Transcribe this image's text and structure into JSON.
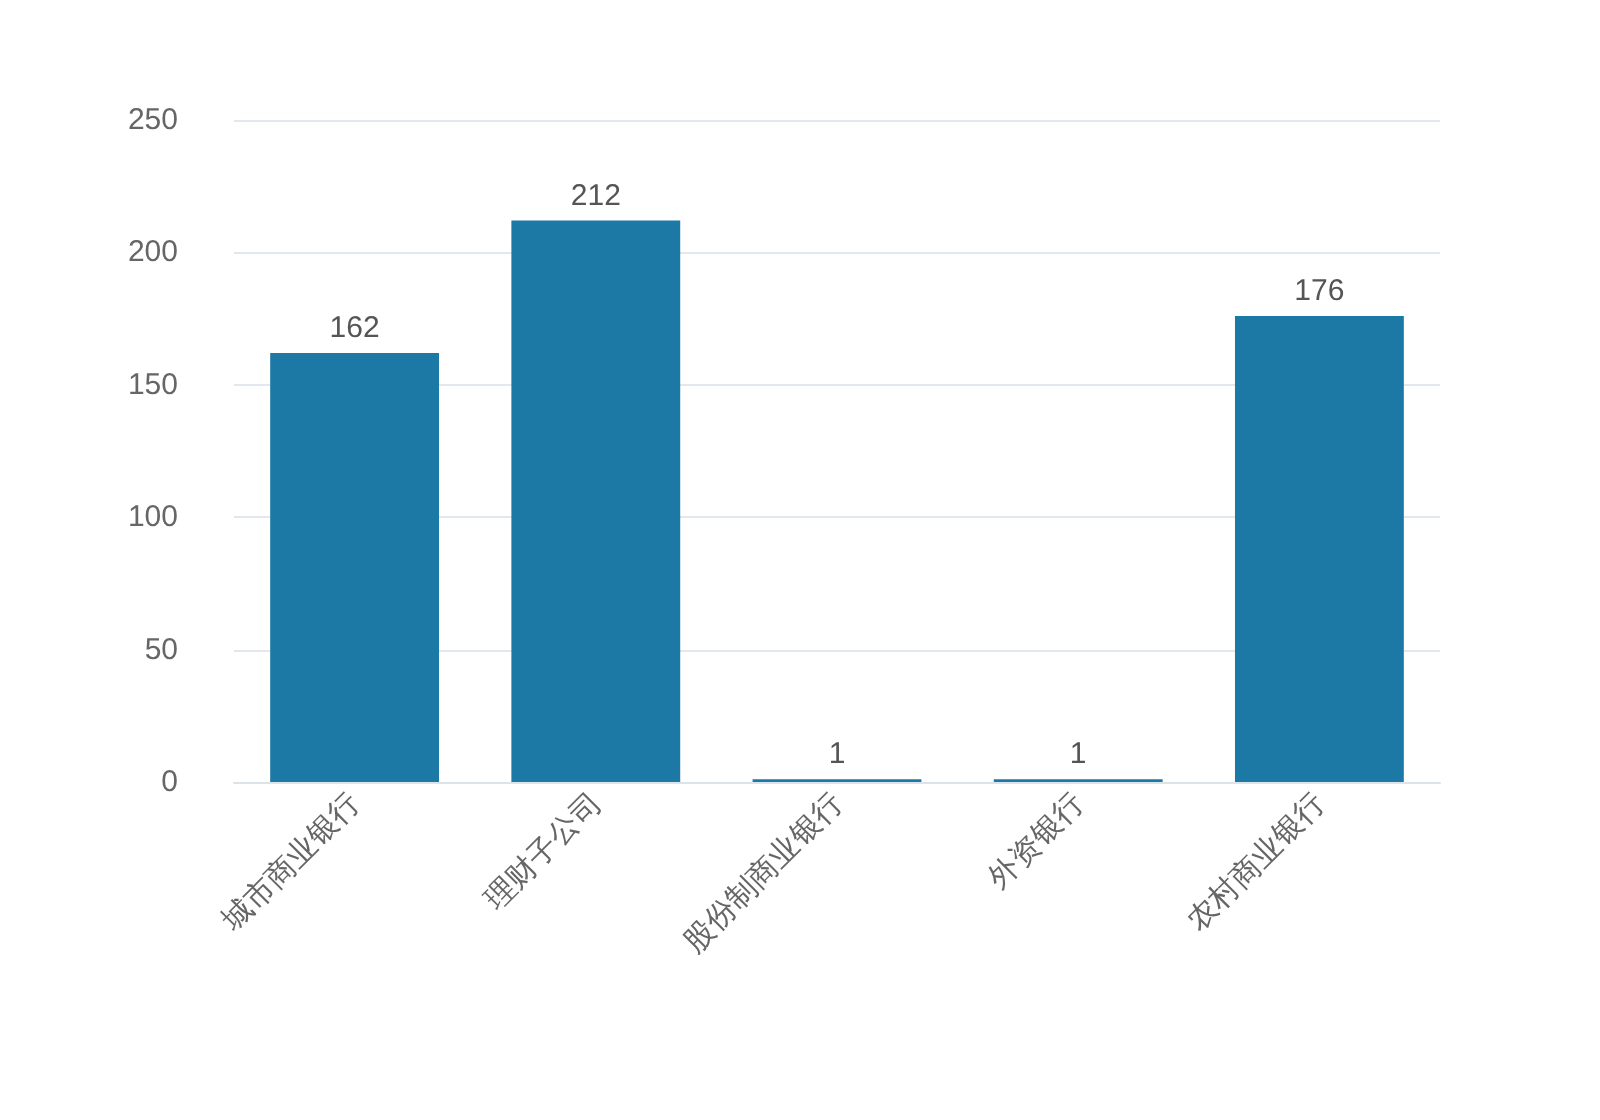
{
  "chart_data": {
    "type": "bar",
    "categories": [
      "城市商业银行",
      "理财子公司",
      "股份制商业银行",
      "外资银行",
      "农村商业银行"
    ],
    "values": [
      162,
      212,
      1,
      1,
      176
    ],
    "color": "#1c79a5",
    "ylim": [
      0,
      250
    ],
    "yticks": [
      0,
      50,
      100,
      150,
      200,
      250
    ],
    "grid": "y",
    "data_labels": true
  }
}
